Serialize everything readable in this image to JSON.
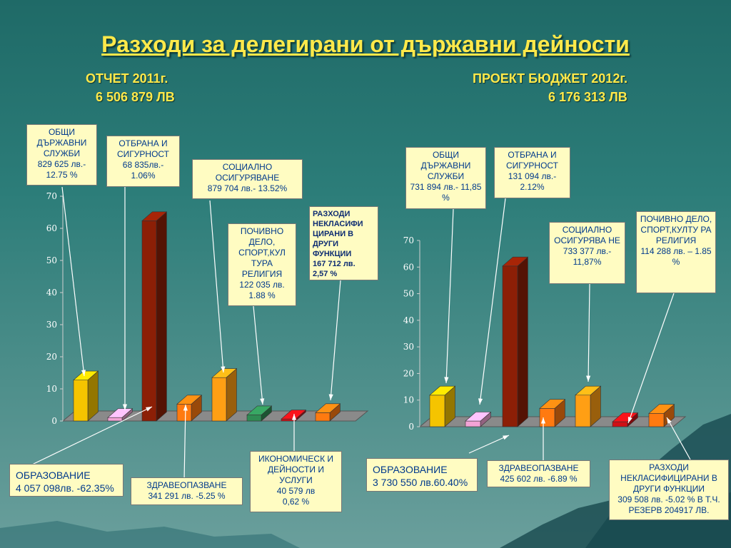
{
  "title": "Разходи за делегирани от държавни дейности",
  "left_header": {
    "label": "ОТЧЕТ 2011г.",
    "total": "6 506 879 ЛВ"
  },
  "right_header": {
    "label": "ПРОЕКТ БЮДЖЕТ 2012г.",
    "total": "6 176 313 ЛВ"
  },
  "colors": {
    "yellow": "#f5c400",
    "pink": "#f3a3d6",
    "darkred": "#8c1f06",
    "orange": "#ff7a10",
    "amber": "#ff9f14",
    "green": "#2f8c53",
    "red": "#d01016",
    "title": "#ffe94a",
    "callout_bg": "#fffcc2"
  },
  "chart_data": [
    {
      "type": "bar",
      "title": "ОТЧЕТ 2011г.",
      "ylim": [
        0,
        70
      ],
      "yticks": [
        0,
        10,
        20,
        30,
        40,
        50,
        60,
        70
      ],
      "grid": false,
      "values": [
        12.75,
        1.06,
        62.35,
        5.25,
        13.52,
        1.88,
        0.62,
        2.57
      ],
      "colors": [
        "yellow",
        "pink",
        "darkred",
        "orange",
        "amber",
        "green",
        "red",
        "orange"
      ],
      "callouts": [
        "ОБЩИ ДЪРЖАВНИ СЛУЖБИ\n829 625 лв.- 12.75 %",
        "ОТБРАНА И СИГУРНОСТ\n68 835лв.- 1.06%",
        "ОБРАЗОВАНИЕ\n4 057 098лв. -62.35%",
        "ЗДРАВЕОПАЗВАНЕ\n341 291 лв. -5.25 %",
        "СОЦИАЛНО ОСИГУРЯВАНЕ\n879 704 лв.- 13.52%",
        "ПОЧИВНО ДЕЛО, СПОРТ,КУЛ ТУРА РЕЛИГИЯ\n122 035 лв.\n1.88 %",
        "ИКОНОМИЧЕСК И ДЕЙНОСТИ И УСЛУГИ\n40 579 лв\n0,62 %",
        "РАЗХОДИ НЕКЛАСИФИ ЦИРАНИ В ДРУГИ ФУНКЦИИ\n167 712 лв.\n2,57 %"
      ]
    },
    {
      "type": "bar",
      "title": "ПРОЕКТ БЮДЖЕТ 2012г.",
      "ylim": [
        0,
        70
      ],
      "yticks": [
        0,
        10,
        20,
        30,
        40,
        50,
        60,
        70
      ],
      "grid": false,
      "values": [
        11.85,
        2.12,
        60.4,
        6.89,
        11.87,
        1.85,
        5.02
      ],
      "colors": [
        "yellow",
        "pink",
        "darkred",
        "orange",
        "amber",
        "red",
        "orange"
      ],
      "callouts": [
        "ОБЩИ ДЪРЖАВНИ СЛУЖБИ\n731 894 лв.- 11,85 %",
        "ОТБРАНА И СИГУРНОСТ\n131 094 лв.- 2.12%",
        "ОБРАЗОВАНИЕ\n3 730 550 лв.60.40%",
        "ЗДРАВЕОПАЗВАНЕ\n425 602 лв. -6.89 %",
        "СОЦИАЛНО ОСИГУРЯВА НЕ\n733 377 лв.- 11,87%",
        "ПОЧИВНО ДЕЛО, СПОРТ,КУЛТУ РА РЕЛИГИЯ\n114 288 лв. – 1.85 %",
        "РАЗХОДИ НЕКЛАСИФИЦИРАНИ В ДРУГИ ФУНКЦИИ\n309 508 лв. -5.02 % В Т.Ч. РЕЗЕРВ 204917 ЛВ."
      ]
    }
  ]
}
